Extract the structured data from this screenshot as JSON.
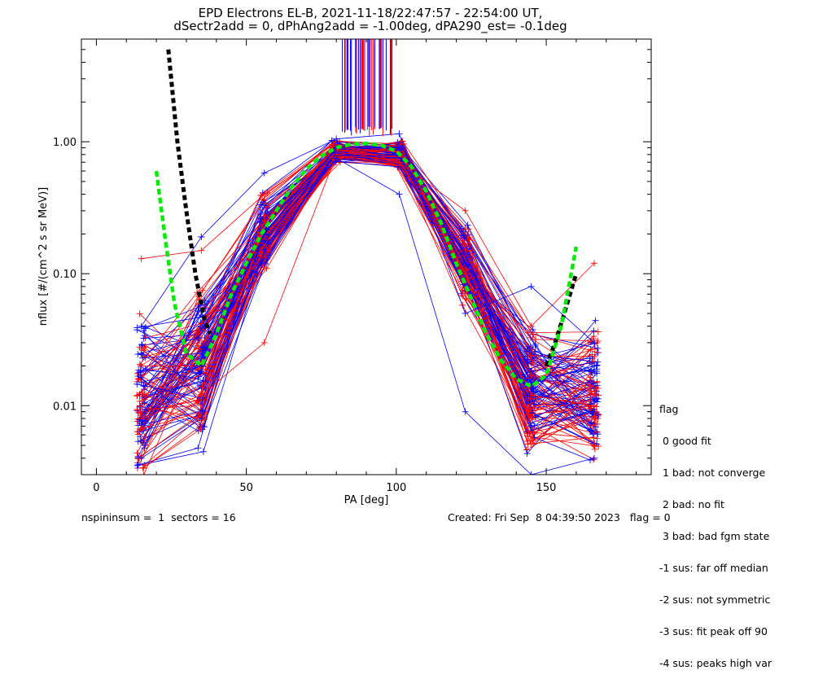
{
  "title_line1": "EPD Electrons EL-B, 2021-11-18/22:47:57 - 22:54:00 UT,",
  "title_line2": "dSectr2add = 0, dPhAng2add = -1.00deg, dPA290_est=  -0.1deg",
  "legend": {
    "heading": "flag",
    "items": [
      " 0 good fit",
      " 1 bad: not converge",
      " 2 bad: no fit",
      " 3 bad: bad fgm state",
      "-1 sus: far off median",
      "-2 sus: not symmetric",
      "-3 sus: fit peak off 90",
      "-4 sus: peaks high var"
    ]
  },
  "footer": {
    "left": "nspininsum =  1  sectors = 16",
    "right": "Created: Fri Sep  8 04:39:50 2023   flag = 0"
  },
  "colors": {
    "series_red": "#ff0000",
    "series_blue": "#0000ff",
    "fit_green": "#00ee00",
    "fit_black": "#000000"
  },
  "chart_data": {
    "type": "line",
    "xlabel": "PA [deg]",
    "ylabel": "nflux [#/(cm^2 s sr MeV)]",
    "xlim": [
      -5,
      185
    ],
    "ylim": [
      0.003,
      6.0
    ],
    "yscale": "log",
    "xticks": [
      0,
      50,
      100,
      150
    ],
    "xtick_labels": [
      "0",
      "50",
      "100",
      "150"
    ],
    "yticks": [
      0.01,
      0.1,
      1.0
    ],
    "ytick_labels": [
      "0.01",
      "0.10",
      "1.00"
    ],
    "series_note": "many overlapping per-spin traces in red and blue",
    "sector_pa": [
      15,
      35,
      56,
      80,
      101,
      123,
      145,
      166
    ],
    "typical_profile": [
      0.012,
      0.02,
      0.2,
      0.85,
      0.8,
      0.12,
      0.013,
      0.012
    ],
    "series": [
      {
        "name": "red traces",
        "color": "#ff0000",
        "representative": [
          {
            "x": [
              15,
              35,
              56,
              80,
              101,
              123,
              145,
              166
            ],
            "y": [
              0.02,
              0.02,
              0.25,
              0.9,
              0.85,
              0.15,
              0.012,
              0.01
            ]
          },
          {
            "x": [
              15,
              35,
              56,
              80,
              101,
              123,
              145,
              166
            ],
            "y": [
              0.13,
              0.15,
              0.4,
              0.95,
              0.7,
              0.3,
              0.04,
              0.12
            ]
          },
          {
            "x": [
              15,
              35,
              56,
              80,
              101,
              123,
              145,
              166
            ],
            "y": [
              0.008,
              0.012,
              0.03,
              0.8,
              0.9,
              0.1,
              0.008,
              0.005
            ]
          }
        ]
      },
      {
        "name": "blue traces",
        "color": "#0000ff",
        "representative": [
          {
            "x": [
              15,
              35,
              56,
              80,
              101,
              123,
              145,
              166
            ],
            "y": [
              0.015,
              0.02,
              0.2,
              0.9,
              0.9,
              0.12,
              0.015,
              0.02
            ]
          },
          {
            "x": [
              15,
              35,
              56,
              80,
              101,
              123,
              145,
              166
            ],
            "y": [
              0.04,
              0.19,
              0.58,
              1.05,
              1.15,
              0.05,
              0.08,
              0.03
            ]
          },
          {
            "x": [
              15,
              35,
              56,
              80,
              101,
              123,
              145,
              166
            ],
            "y": [
              0.004,
              0.008,
              0.15,
              0.75,
              0.4,
              0.009,
              0.003,
              0.004
            ]
          }
        ]
      },
      {
        "name": "fit (green)",
        "color": "#00ee00",
        "x": [
          20,
          23,
          26,
          30,
          35,
          40,
          45,
          50,
          55,
          60,
          65,
          70,
          75,
          80,
          85,
          90,
          95,
          100,
          105,
          110,
          115,
          120,
          125,
          130,
          135,
          140,
          145,
          150,
          155,
          160
        ],
        "y": [
          0.6,
          0.18,
          0.06,
          0.025,
          0.02,
          0.035,
          0.07,
          0.12,
          0.2,
          0.3,
          0.45,
          0.62,
          0.78,
          0.9,
          0.96,
          0.97,
          0.94,
          0.85,
          0.65,
          0.42,
          0.24,
          0.12,
          0.065,
          0.035,
          0.022,
          0.016,
          0.014,
          0.017,
          0.04,
          0.16
        ]
      },
      {
        "name": "fit (black)",
        "color": "#000000",
        "x": [
          24,
          27,
          30,
          33,
          36,
          38,
          150,
          153,
          156,
          160
        ],
        "y": [
          5.0,
          1.0,
          0.3,
          0.1,
          0.045,
          0.035,
          0.02,
          0.03,
          0.05,
          0.1
        ]
      }
    ]
  }
}
